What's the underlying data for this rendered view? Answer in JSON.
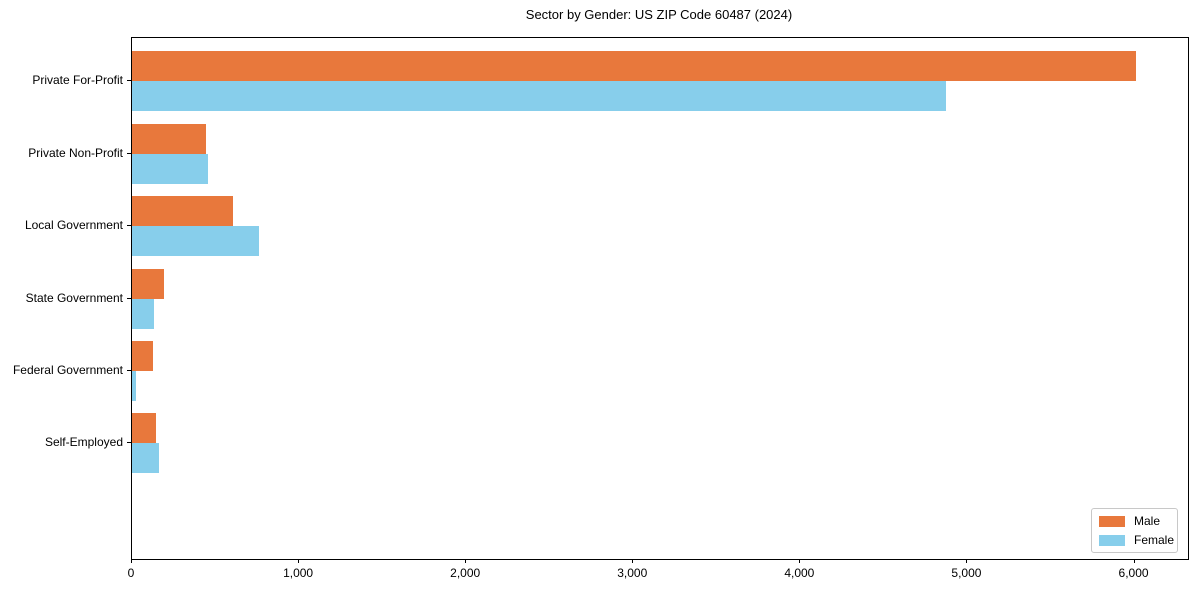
{
  "title": "Sector by Gender: US ZIP Code 60487 (2024)",
  "colors": {
    "male": "#e8783c",
    "female": "#87ceeb",
    "axis": "#000000",
    "legend_border": "#c8c8c8",
    "background": "#ffffff"
  },
  "chart_data": {
    "type": "bar",
    "orientation": "horizontal",
    "title": "Sector by Gender: US ZIP Code 60487 (2024)",
    "xlabel": "",
    "ylabel": "",
    "categories": [
      "Private For-Profit",
      "Private Non-Profit",
      "Local Government",
      "State Government",
      "Federal Government",
      "Self-Employed"
    ],
    "series": [
      {
        "name": "Male",
        "color": "#e8783c",
        "values": [
          6010,
          445,
          605,
          190,
          125,
          145
        ]
      },
      {
        "name": "Female",
        "color": "#87ceeb",
        "values": [
          4870,
          455,
          760,
          130,
          25,
          160
        ]
      }
    ],
    "xlim": [
      0,
      6320
    ],
    "xticks": [
      0,
      1000,
      2000,
      3000,
      4000,
      5000,
      6000
    ],
    "xtick_labels": [
      "0",
      "1,000",
      "2,000",
      "3,000",
      "4,000",
      "5,000",
      "6,000"
    ],
    "grid": false,
    "legend": {
      "position": "lower right",
      "entries": [
        "Male",
        "Female"
      ]
    }
  }
}
